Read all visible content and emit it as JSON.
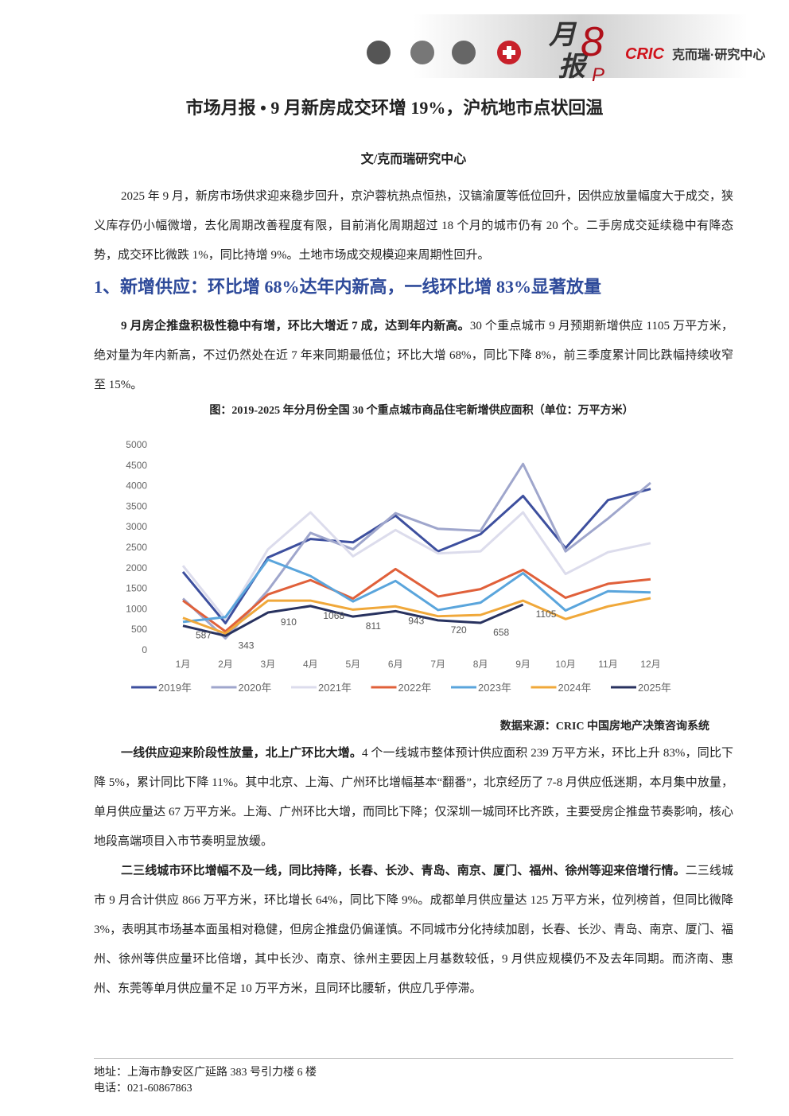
{
  "header": {
    "brand_top": "月",
    "brand_bottom": "报",
    "brand_num": "8",
    "brand_p": "P",
    "logo": "CRIC",
    "logo_text": "克而瑞·研究中心"
  },
  "title": "市场月报 • 9 月新房成交环增 19%，沪杭地市点状回温",
  "byline": "文/克而瑞研究中心",
  "paragraphs": [
    {
      "text": "2025 年 9 月，新房市场供求迎来稳步回升，京沪蓉杭热点恒热，汉镐渝厦等低位回升，因供应放量幅度大于成交，狭义库存仍小幅微增，去化周期改善程度有限，目前消化周期超过 18 个月的城市仍有 20 个。二手房成交延续稳中有降态势，成交环比微跌 1%，同比持增 9%。土地市场成交规模迎来周期性回升。"
    }
  ],
  "section_heading": "1、新增供应：环比增 68%达年内新高，一线环比增 83%显著放量",
  "section_paragraphs": [
    {
      "bold": "9 月房企推盘积极性稳中有增，环比大增近 7 成，达到年内新高。",
      "text": "30 个重点城市 9 月预期新增供应 1105 万平方米，绝对量为年内新高，不过仍然处在近 7 年来同期最低位；环比大增 68%，同比下降 8%，前三季度累计同比跌幅持续收窄至 15%。"
    },
    {
      "bold": "一线供应迎来阶段性放量，北上广环比大增。",
      "text": "4 个一线城市整体预计供应面积 239 万平方米，环比上升 83%，同比下降 5%，累计同比下降 11%。其中北京、上海、广州环比增幅基本“翻番”，北京经历了 7-8 月供应低迷期，本月集中放量，单月供应量达 67 万平方米。上海、广州环比大增，而同比下降；仅深圳一城同环比齐跌，主要受房企推盘节奏影响，核心地段高端项目入市节奏明显放缓。"
    },
    {
      "bold": "二三线城市环比增幅不及一线，同比持降，长春、长沙、青岛、南京、厦门、福州、徐州等迎来倍增行情。",
      "text": "二三线城市 9 月合计供应 866 万平方米，环比增长 64%，同比下降 9%。成都单月供应量达 125 万平方米，位列榜首，但同比微降 3%，表明其市场基本面虽相对稳健，但房企推盘仍偏谨慎。不同城市分化持续加剧，长春、长沙、青岛、南京、厦门、福州、徐州等供应量环比倍增，其中长沙、南京、徐州主要因上月基数较低，9 月供应规模仍不及去年同期。而济南、惠州、东莞等单月供应量不足 10 万平方米，且同环比腰斩，供应几乎停滞。"
    }
  ],
  "chart_data": {
    "type": "line",
    "title": "图：2019-2025 年分月份全国 30 个重点城市商品住宅新增供应面积（单位：万平方米）",
    "source": "数据来源：CRIC 中国房地产决策咨询系统",
    "categories": [
      "1月",
      "2月",
      "3月",
      "4月",
      "5月",
      "6月",
      "7月",
      "8月",
      "9月",
      "10月",
      "11月",
      "12月"
    ],
    "ylim": [
      0,
      5000
    ],
    "yticks": [
      0,
      500,
      1000,
      1500,
      2000,
      2500,
      3000,
      3500,
      4000,
      4500,
      5000
    ],
    "grid": false,
    "legend": "bottom",
    "series": [
      {
        "name": "2019年",
        "color": "#3d4f9e",
        "values": [
          1900,
          650,
          2250,
          2700,
          2620,
          3270,
          2400,
          2820,
          3750,
          2480,
          3650,
          3920
        ]
      },
      {
        "name": "2020年",
        "color": "#9fa6cc",
        "values": [
          1250,
          280,
          1450,
          2850,
          2450,
          3330,
          2950,
          2900,
          4530,
          2400,
          3200,
          4070
        ]
      },
      {
        "name": "2021年",
        "color": "#dcdcec",
        "values": [
          2050,
          750,
          2450,
          3350,
          2280,
          2920,
          2350,
          2400,
          3350,
          1850,
          2380,
          2600
        ]
      },
      {
        "name": "2022年",
        "color": "#e0603a",
        "values": [
          1200,
          450,
          1350,
          1700,
          1250,
          1970,
          1300,
          1480,
          1950,
          1270,
          1610,
          1720
        ]
      },
      {
        "name": "2023年",
        "color": "#5aa5dc",
        "values": [
          680,
          800,
          2200,
          1800,
          1180,
          1680,
          970,
          1150,
          1870,
          960,
          1430,
          1400
        ]
      },
      {
        "name": "2024年",
        "color": "#f0a83a",
        "values": [
          780,
          400,
          1200,
          1200,
          980,
          1060,
          820,
          850,
          1200,
          750,
          1060,
          1260
        ]
      },
      {
        "name": "2025年",
        "color": "#28325f",
        "data_labels": true,
        "values": [
          587,
          343,
          910,
          1068,
          811,
          943,
          720,
          658,
          1105,
          null,
          null,
          null
        ]
      }
    ]
  },
  "footer": {
    "address": "地址：上海市静安区广延路 383 号引力楼 6 楼",
    "phone": "电话：021-60867863"
  }
}
